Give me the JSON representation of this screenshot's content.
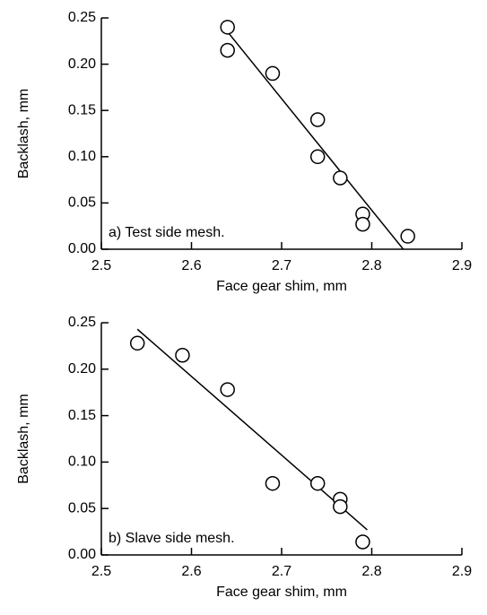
{
  "chart_data": [
    {
      "type": "scatter",
      "annotation": "a) Test side mesh.",
      "xlabel": "Face gear shim, mm",
      "ylabel": "Backlash, mm",
      "x": [
        2.64,
        2.64,
        2.69,
        2.74,
        2.74,
        2.765,
        2.79,
        2.79,
        2.84
      ],
      "values": [
        0.24,
        0.215,
        0.19,
        0.14,
        0.1,
        0.077,
        0.038,
        0.027,
        0.014
      ],
      "fit": {
        "x": [
          2.64,
          2.835
        ],
        "values": [
          0.235,
          0.0
        ]
      },
      "xlim": [
        2.5,
        2.9
      ],
      "xticks": [
        2.5,
        2.6,
        2.7,
        2.8,
        2.9
      ],
      "ylim": [
        0,
        0.25
      ],
      "yticks": [
        {
          "value": 0,
          "label": "0.00"
        },
        0.05,
        {
          "value": 0.1,
          "label": "0.10"
        },
        0.15,
        {
          "value": 0.2,
          "label": "0.20"
        },
        0.25
      ]
    },
    {
      "type": "scatter",
      "annotation": "b) Slave side mesh.",
      "xlabel": "Face gear shim, mm",
      "ylabel": "Backlash, mm",
      "x": [
        2.54,
        2.59,
        2.64,
        2.69,
        2.74,
        2.765,
        2.765,
        2.79
      ],
      "values": [
        0.228,
        0.215,
        0.178,
        0.077,
        0.077,
        0.06,
        0.052,
        0.014
      ],
      "fit": {
        "x": [
          2.54,
          2.795
        ],
        "values": [
          0.243,
          0.027
        ]
      },
      "xlim": [
        2.5,
        2.9
      ],
      "xticks": [
        2.5,
        2.6,
        2.7,
        2.8,
        2.9
      ],
      "ylim": [
        0,
        0.25
      ],
      "yticks": [
        {
          "value": 0,
          "label": "0.00"
        },
        0.05,
        {
          "value": 0.1,
          "label": "0.10"
        },
        0.15,
        {
          "value": 0.2,
          "label": "0.20"
        },
        0.25
      ]
    }
  ]
}
